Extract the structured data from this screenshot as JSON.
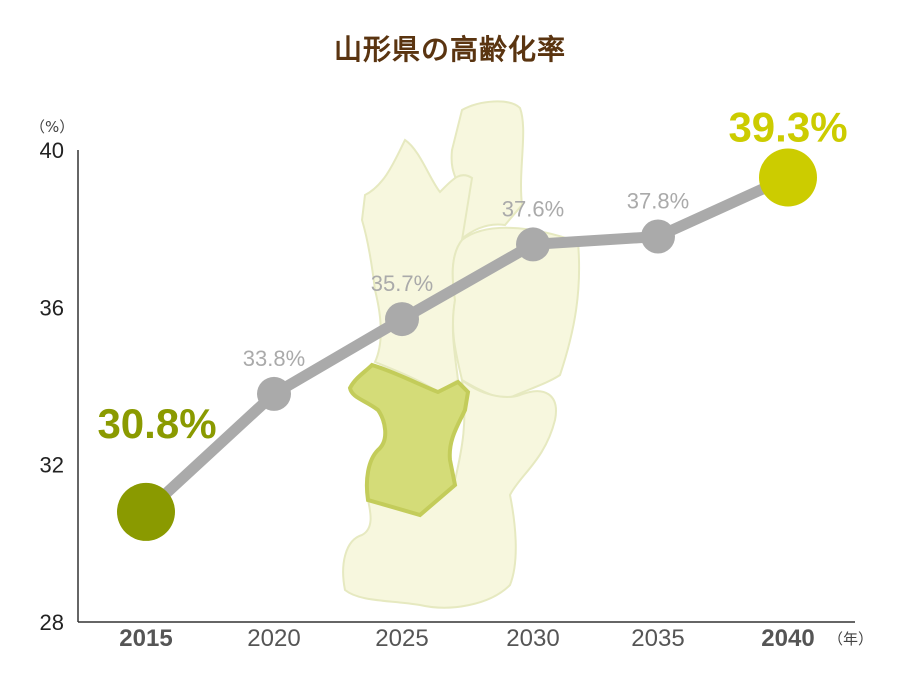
{
  "title": "山形県の高齢化率",
  "chart_data": {
    "type": "line",
    "title": "山形県の高齢化率",
    "x_unit": "（年）",
    "y_unit": "（%）",
    "x": [
      "2015",
      "2020",
      "2025",
      "2030",
      "2035",
      "2040"
    ],
    "values": [
      30.8,
      33.8,
      35.7,
      37.6,
      37.8,
      39.3
    ],
    "value_labels": [
      "30.8%",
      "33.8%",
      "35.7%",
      "37.6%",
      "37.8%",
      "39.3%"
    ],
    "yticks": [
      "28",
      "32",
      "36",
      "40"
    ],
    "ylim": [
      28,
      40
    ],
    "grid": false,
    "colors": {
      "line": "#aaaaaa",
      "start": "#8a9a00",
      "end": "#cccc00",
      "map_fill": "#f7f7de",
      "map_highlight": "#d4dc78",
      "title": "#5a3410"
    }
  }
}
